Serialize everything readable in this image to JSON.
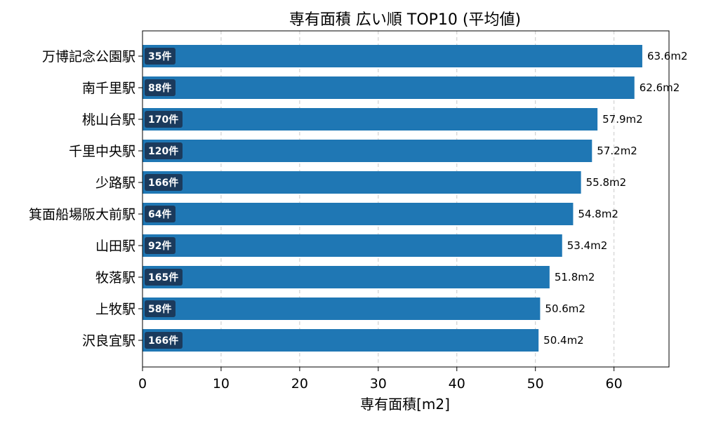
{
  "chart_data": {
    "type": "bar",
    "orientation": "horizontal",
    "title": "専有面積 広い順 TOP10 (平均値)",
    "xlabel": "専有面積[m2]",
    "ylabel": "",
    "xlim": [
      0,
      67
    ],
    "xticks": [
      0,
      10,
      20,
      30,
      40,
      50,
      60
    ],
    "grid": "x-dashed",
    "bar_color": "#1f77b4",
    "badge_color": "#1b3a5c",
    "categories": [
      "万博記念公園駅",
      "南千里駅",
      "桃山台駅",
      "千里中央駅",
      "少路駅",
      "箕面船場阪大前駅",
      "山田駅",
      "牧落駅",
      "上牧駅",
      "沢良宜駅"
    ],
    "values": [
      63.6,
      62.6,
      57.9,
      57.2,
      55.8,
      54.8,
      53.4,
      51.8,
      50.6,
      50.4
    ],
    "value_labels": [
      "63.6m2",
      "62.6m2",
      "57.9m2",
      "57.2m2",
      "55.8m2",
      "54.8m2",
      "53.4m2",
      "51.8m2",
      "50.6m2",
      "50.4m2"
    ],
    "count_labels": [
      "35件",
      "88件",
      "170件",
      "120件",
      "166件",
      "64件",
      "92件",
      "165件",
      "58件",
      "166件"
    ]
  }
}
